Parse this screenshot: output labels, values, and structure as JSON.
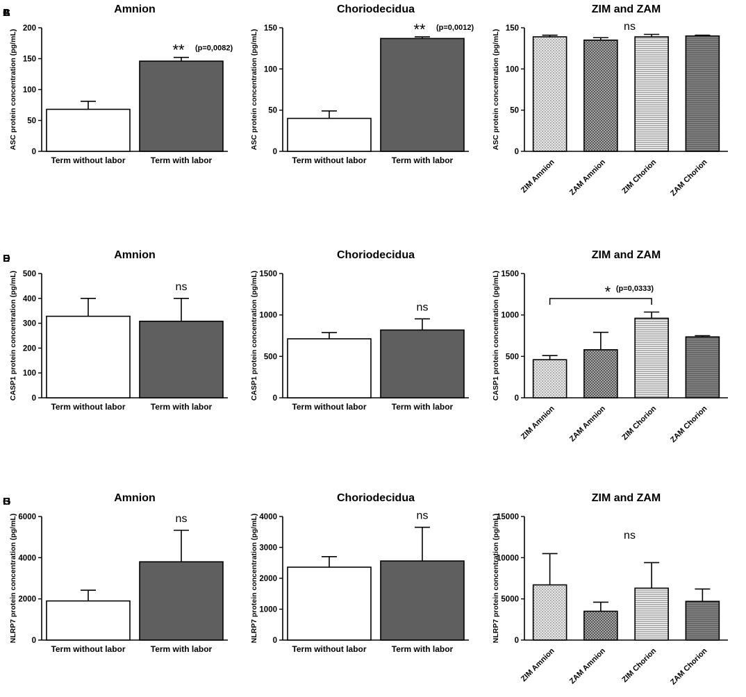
{
  "figure": {
    "description_panels": 9
  },
  "colors": {
    "dark_bar": "#5f5f5f",
    "light_bar": "#ffffff",
    "axis": "#000000"
  },
  "chart_data": [
    {
      "id": "A",
      "type": "bar",
      "title": "Amnion",
      "ylabel": "ASC protein concentration (pg/mL)",
      "ylim": [
        0,
        200
      ],
      "yticks": [
        0,
        50,
        100,
        150,
        200
      ],
      "categories": [
        "Term without labor",
        "Term with labor"
      ],
      "values": [
        68,
        146
      ],
      "errors": [
        13,
        6
      ],
      "fills": [
        "white",
        "dark"
      ],
      "annotations": [
        {
          "bar": 1,
          "marker": "**",
          "text": "(p=0,0082)"
        }
      ]
    },
    {
      "id": "B",
      "type": "bar",
      "title": "Choriodecidua",
      "ylabel": "ASC protein concentration (pg/mL)",
      "ylim": [
        0,
        150
      ],
      "yticks": [
        0,
        50,
        100,
        150
      ],
      "categories": [
        "Term without labor",
        "Term with labor"
      ],
      "values": [
        40,
        137
      ],
      "errors": [
        9,
        2
      ],
      "fills": [
        "white",
        "dark"
      ],
      "annotations": [
        {
          "bar": 1,
          "marker": "**",
          "text": "(p=0,0012)"
        }
      ]
    },
    {
      "id": "C",
      "type": "bar",
      "title": "ZIM and ZAM",
      "ylabel": "ASC protein concentration (pg/mL)",
      "ylim": [
        0,
        150
      ],
      "yticks": [
        0,
        50,
        100,
        150
      ],
      "categories": [
        "ZIM Amnion",
        "ZAM Amnion",
        "ZIM Chorion",
        "ZAM Chorion"
      ],
      "values": [
        139,
        135,
        139,
        140
      ],
      "errors": [
        2,
        3,
        3,
        1
      ],
      "fills": [
        "dots",
        "cross",
        "hlines",
        "grid"
      ],
      "annotations": [
        {
          "text": "ns"
        }
      ]
    },
    {
      "id": "D",
      "type": "bar",
      "title": "Amnion",
      "ylabel": "CASP1  protein concentration (pg/mL)",
      "ylim": [
        0,
        500
      ],
      "yticks": [
        0,
        100,
        200,
        300,
        400,
        500
      ],
      "categories": [
        "Term without labor",
        "Term with labor"
      ],
      "values": [
        328,
        308
      ],
      "errors": [
        72,
        92
      ],
      "fills": [
        "white",
        "dark"
      ],
      "annotations": [
        {
          "bar": 1,
          "text": "ns"
        }
      ]
    },
    {
      "id": "E",
      "type": "bar",
      "title": "Choriodecidua",
      "ylabel": "CASP1  protein concentration (pg/mL)",
      "ylim": [
        0,
        1500
      ],
      "yticks": [
        0,
        500,
        1000,
        1500
      ],
      "categories": [
        "Term without labor",
        "Term with labor"
      ],
      "values": [
        712,
        818
      ],
      "errors": [
        75,
        135
      ],
      "fills": [
        "white",
        "dark"
      ],
      "annotations": [
        {
          "bar": 1,
          "text": "ns"
        }
      ]
    },
    {
      "id": "F",
      "type": "bar",
      "title": "ZIM and ZAM",
      "ylabel": "CASP1  protein concentration (pg/mL)",
      "ylim": [
        0,
        1500
      ],
      "yticks": [
        0,
        500,
        1000,
        1500
      ],
      "categories": [
        "ZIM Amnion",
        "ZAM Amnion",
        "ZIM Chorion",
        "ZAM Chorion"
      ],
      "values": [
        460,
        580,
        960,
        735
      ],
      "errors": [
        50,
        210,
        75,
        15
      ],
      "fills": [
        "dots",
        "cross",
        "hlines",
        "grid"
      ],
      "annotations": [
        {
          "bracket": [
            0,
            2
          ],
          "marker": "*",
          "text": "(p=0,0333)"
        }
      ]
    },
    {
      "id": "G",
      "type": "bar",
      "title": "Amnion",
      "ylabel": "NLRP7 protein concentration (pg/mL)",
      "ylim": [
        0,
        6000
      ],
      "yticks": [
        0,
        2000,
        4000,
        6000
      ],
      "categories": [
        "Term without labor",
        "Term with labor"
      ],
      "values": [
        1900,
        3800
      ],
      "errors": [
        520,
        1530
      ],
      "fills": [
        "white",
        "dark"
      ],
      "annotations": [
        {
          "bar": 1,
          "text": "ns"
        }
      ]
    },
    {
      "id": "H",
      "type": "bar",
      "title": "Choriodecidua",
      "ylabel": "NLRP7 protein concentration (pg/mL)",
      "ylim": [
        0,
        4000
      ],
      "yticks": [
        0,
        1000,
        2000,
        3000,
        4000
      ],
      "categories": [
        "Term without labor",
        "Term with labor"
      ],
      "values": [
        2360,
        2560
      ],
      "errors": [
        340,
        1090
      ],
      "fills": [
        "white",
        "dark"
      ],
      "annotations": [
        {
          "bar": 1,
          "text": "ns"
        }
      ]
    },
    {
      "id": "I",
      "type": "bar",
      "title": "ZIM and ZAM",
      "ylabel": "NLRP7 protein concentration (pg/mL)",
      "ylim": [
        0,
        15000
      ],
      "yticks": [
        0,
        5000,
        10000,
        15000
      ],
      "categories": [
        "ZIM Amnion",
        "ZAM Amnion",
        "ZIM Chorion",
        "ZAM Chorion"
      ],
      "values": [
        6700,
        3500,
        6300,
        4700
      ],
      "errors": [
        3800,
        1100,
        3100,
        1500
      ],
      "fills": [
        "dots",
        "cross",
        "hlines",
        "grid"
      ],
      "annotations": [
        {
          "text": "ns"
        }
      ]
    }
  ]
}
